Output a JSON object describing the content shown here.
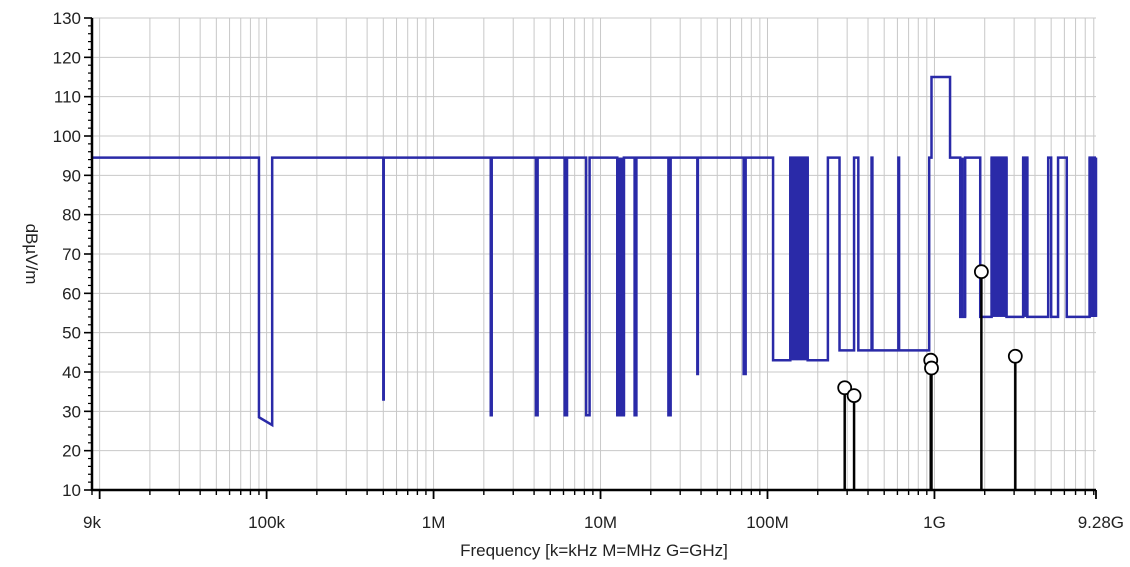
{
  "chart_data": {
    "type": "line",
    "title": "",
    "xlabel": "Frequency [k=kHz M=MHz G=GHz]",
    "ylabel": "dBµV/m",
    "x_scale": "log",
    "xlim": [
      9000,
      9280000000
    ],
    "ylim": [
      10,
      130
    ],
    "grid": true,
    "x_ticks": [
      {
        "value": 9000,
        "label": "9k"
      },
      {
        "value": 100000,
        "label": "100k"
      },
      {
        "value": 1000000,
        "label": "1M"
      },
      {
        "value": 10000000,
        "label": "10M"
      },
      {
        "value": 100000000,
        "label": "100M"
      },
      {
        "value": 1000000000,
        "label": "1G"
      },
      {
        "value": 9280000000,
        "label": "9.28G"
      }
    ],
    "y_ticks": [
      10,
      20,
      30,
      40,
      50,
      60,
      70,
      80,
      90,
      100,
      110,
      120,
      130
    ],
    "colors": {
      "limit_line": "#2a2aa8",
      "measurement": "#000000",
      "grid": "#c8c8c8",
      "axis": "#000000"
    },
    "series": [
      {
        "type": "step-line",
        "x": [
          9000,
          90000,
          90000,
          108000,
          108000,
          500000,
          500000,
          503000,
          503000,
          2200000,
          2200000,
          2230000,
          2230000,
          4100000,
          4100000,
          4200000,
          4200000,
          6100000,
          6100000,
          6300000,
          6300000,
          8200000,
          8200000,
          8600000,
          8600000,
          12600000,
          12600000,
          13800000,
          13800000,
          16000000,
          16000000,
          16400000,
          16400000,
          25500000,
          25500000,
          26300000,
          26300000,
          38000000,
          38000000,
          38300000,
          38300000,
          72000000,
          72000000,
          74000000,
          74000000,
          108000000,
          108000000,
          137000000,
          137000000,
          174000000,
          174000000,
          230000000,
          230000000,
          270000000,
          270000000,
          330000000,
          330000000,
          350000000,
          350000000,
          420000000,
          420000000,
          425000000,
          425000000,
          608000000,
          608000000,
          614000000,
          614000000,
          930000000,
          930000000,
          960000000,
          960000000,
          1240000000,
          1240000000,
          1427000000,
          1427000000,
          1525000000,
          1525000000,
          1880000000,
          1880000000,
          2200000000,
          2200000000,
          2700000000,
          2700000000,
          3400000000,
          3400000000,
          3600000000,
          3600000000,
          4800000000,
          4800000000,
          5000000000,
          5000000000,
          5500000000,
          5500000000,
          6200000000,
          6200000000,
          8500000000,
          8500000000,
          9280000000
        ],
        "y": [
          94.5,
          94.5,
          28.5,
          26.5,
          94.5,
          94.5,
          33,
          33,
          94.5,
          94.5,
          29,
          29,
          94.5,
          94.5,
          29,
          29,
          94.5,
          94.5,
          29,
          29,
          94.5,
          94.5,
          29,
          29,
          94.5,
          94.5,
          29,
          29,
          94.5,
          94.5,
          29,
          29,
          94.5,
          94.5,
          29,
          29,
          94.5,
          94.5,
          39.5,
          39.5,
          94.5,
          94.5,
          39.5,
          39.5,
          94.5,
          94.5,
          43,
          43,
          94.5,
          94.5,
          43,
          43,
          94.5,
          94.5,
          45.5,
          45.5,
          94.5,
          94.5,
          45.5,
          45.5,
          94.5,
          94.5,
          45.5,
          45.5,
          94.5,
          94.5,
          45.5,
          45.5,
          94.5,
          94.5,
          115,
          115,
          94.5,
          94.5,
          54,
          54,
          94.5,
          94.5,
          54,
          54,
          94.5,
          94.5,
          54,
          54,
          94.5,
          94.5,
          54,
          54,
          94.5,
          94.5,
          54,
          54,
          94.5,
          94.5,
          54,
          54,
          94.5,
          94.5
        ]
      }
    ],
    "dense_bands": [
      {
        "x_start": 12600000,
        "x_end": 13800000,
        "y_low": 29,
        "y_high": 94.5,
        "lines": 6
      },
      {
        "x_start": 137000000,
        "x_end": 174000000,
        "y_low": 43,
        "y_high": 94.5,
        "lines": 14
      },
      {
        "x_start": 1427000000,
        "x_end": 1525000000,
        "y_low": 54,
        "y_high": 94.5,
        "lines": 3
      },
      {
        "x_start": 2200000000,
        "x_end": 2700000000,
        "y_low": 54,
        "y_high": 94.5,
        "lines": 12
      },
      {
        "x_start": 3400000000,
        "x_end": 3600000000,
        "y_low": 54,
        "y_high": 94.5,
        "lines": 4
      },
      {
        "x_start": 8500000000,
        "x_end": 9280000000,
        "y_low": 54,
        "y_high": 94.5,
        "lines": 14
      }
    ],
    "measurements": [
      {
        "x": 290000000,
        "y": 36
      },
      {
        "x": 330000000,
        "y": 34
      },
      {
        "x": 950000000,
        "y": 43
      },
      {
        "x": 960000000,
        "y": 41
      },
      {
        "x": 1910000000,
        "y": 65.5
      },
      {
        "x": 3050000000,
        "y": 44
      }
    ]
  }
}
